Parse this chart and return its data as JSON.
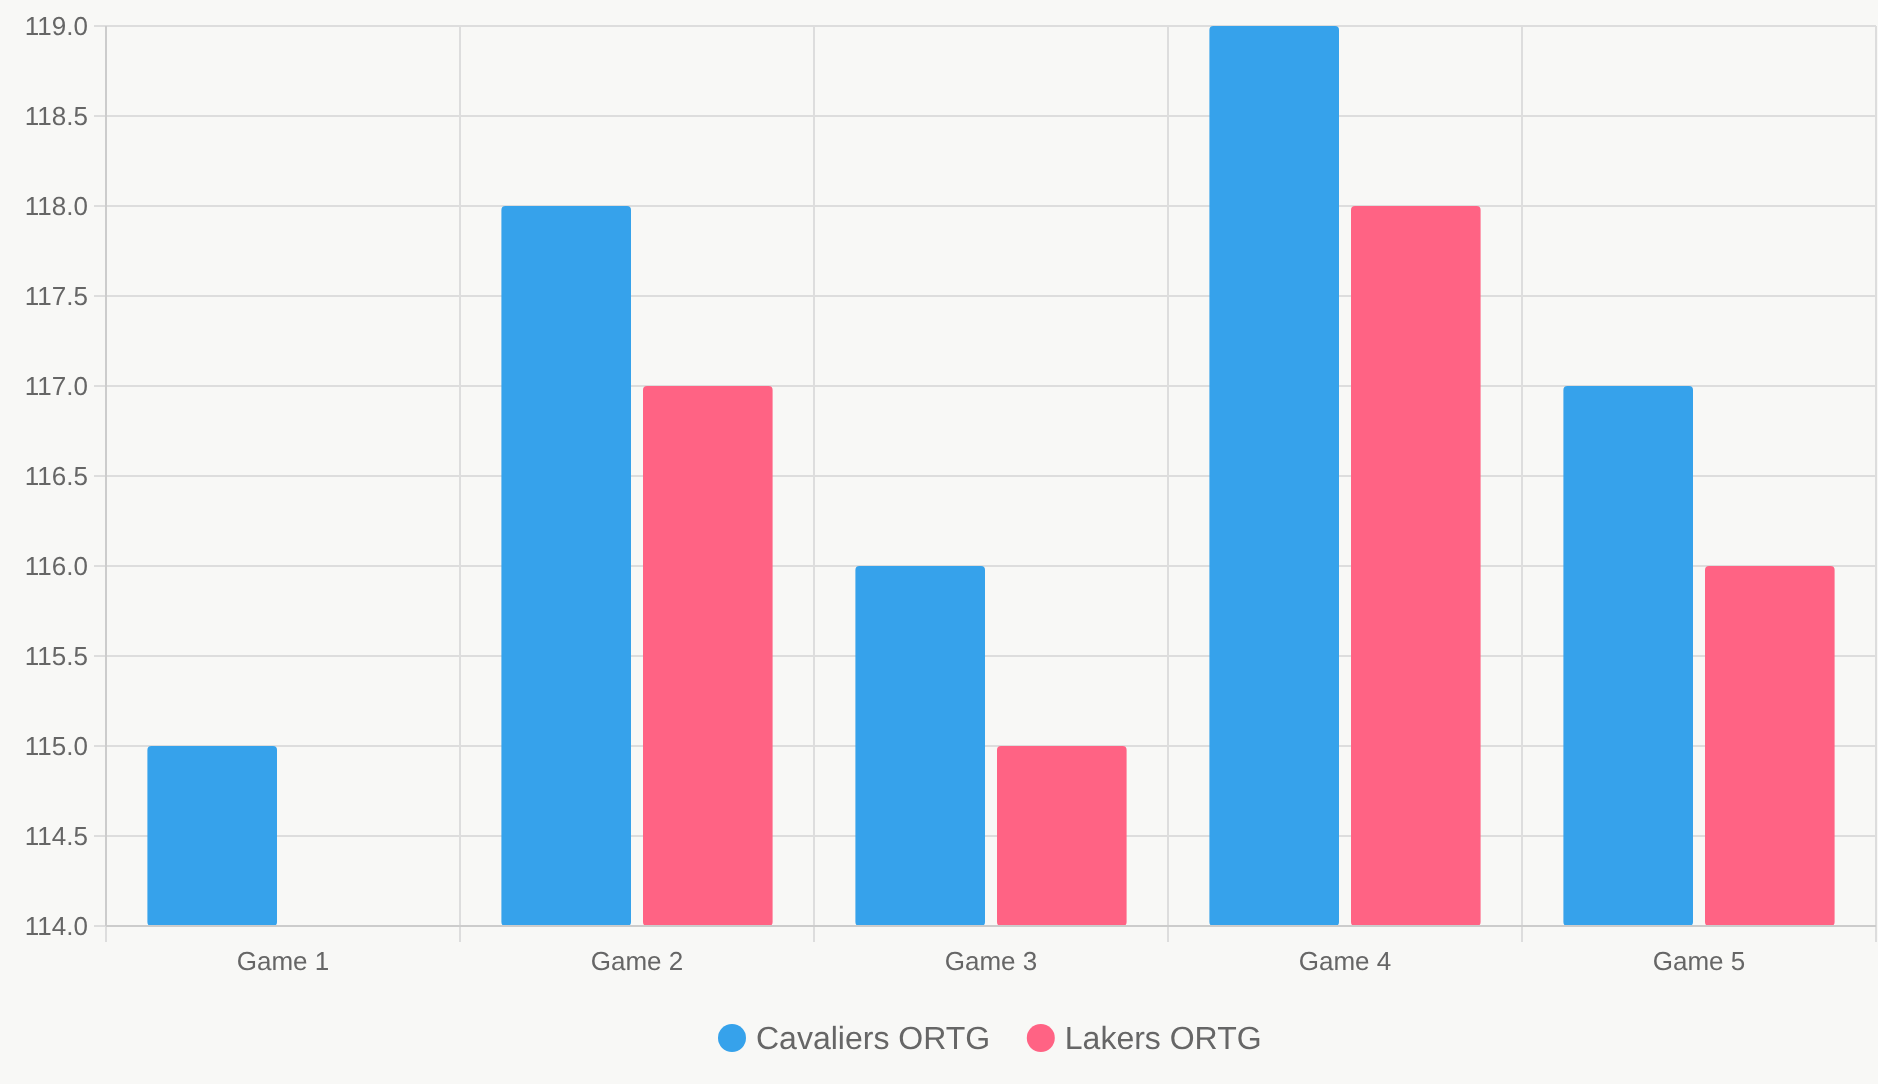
{
  "chart_data": {
    "type": "bar",
    "categories": [
      "Game 1",
      "Game 2",
      "Game 3",
      "Game 4",
      "Game 5"
    ],
    "series": [
      {
        "name": "Cavaliers ORTG",
        "color": "#36a2eb",
        "values": [
          115,
          118,
          116,
          119,
          117
        ]
      },
      {
        "name": "Lakers ORTG",
        "color": "#ff6384",
        "values": [
          114,
          117,
          115,
          118,
          116
        ]
      }
    ],
    "ylim": [
      114,
      119
    ],
    "yticks": [
      {
        "value": 114,
        "label": "114.0"
      },
      {
        "value": 114.5,
        "label": "114.5"
      },
      {
        "value": 115,
        "label": "115.0"
      },
      {
        "value": 115.5,
        "label": "115.5"
      },
      {
        "value": 116,
        "label": "116.0"
      },
      {
        "value": 116.5,
        "label": "116.5"
      },
      {
        "value": 117,
        "label": "117.0"
      },
      {
        "value": 117.5,
        "label": "117.5"
      },
      {
        "value": 118,
        "label": "118.0"
      },
      {
        "value": 118.5,
        "label": "118.5"
      },
      {
        "value": 119,
        "label": "119.0"
      }
    ],
    "grid": true,
    "legend": "bottom"
  }
}
